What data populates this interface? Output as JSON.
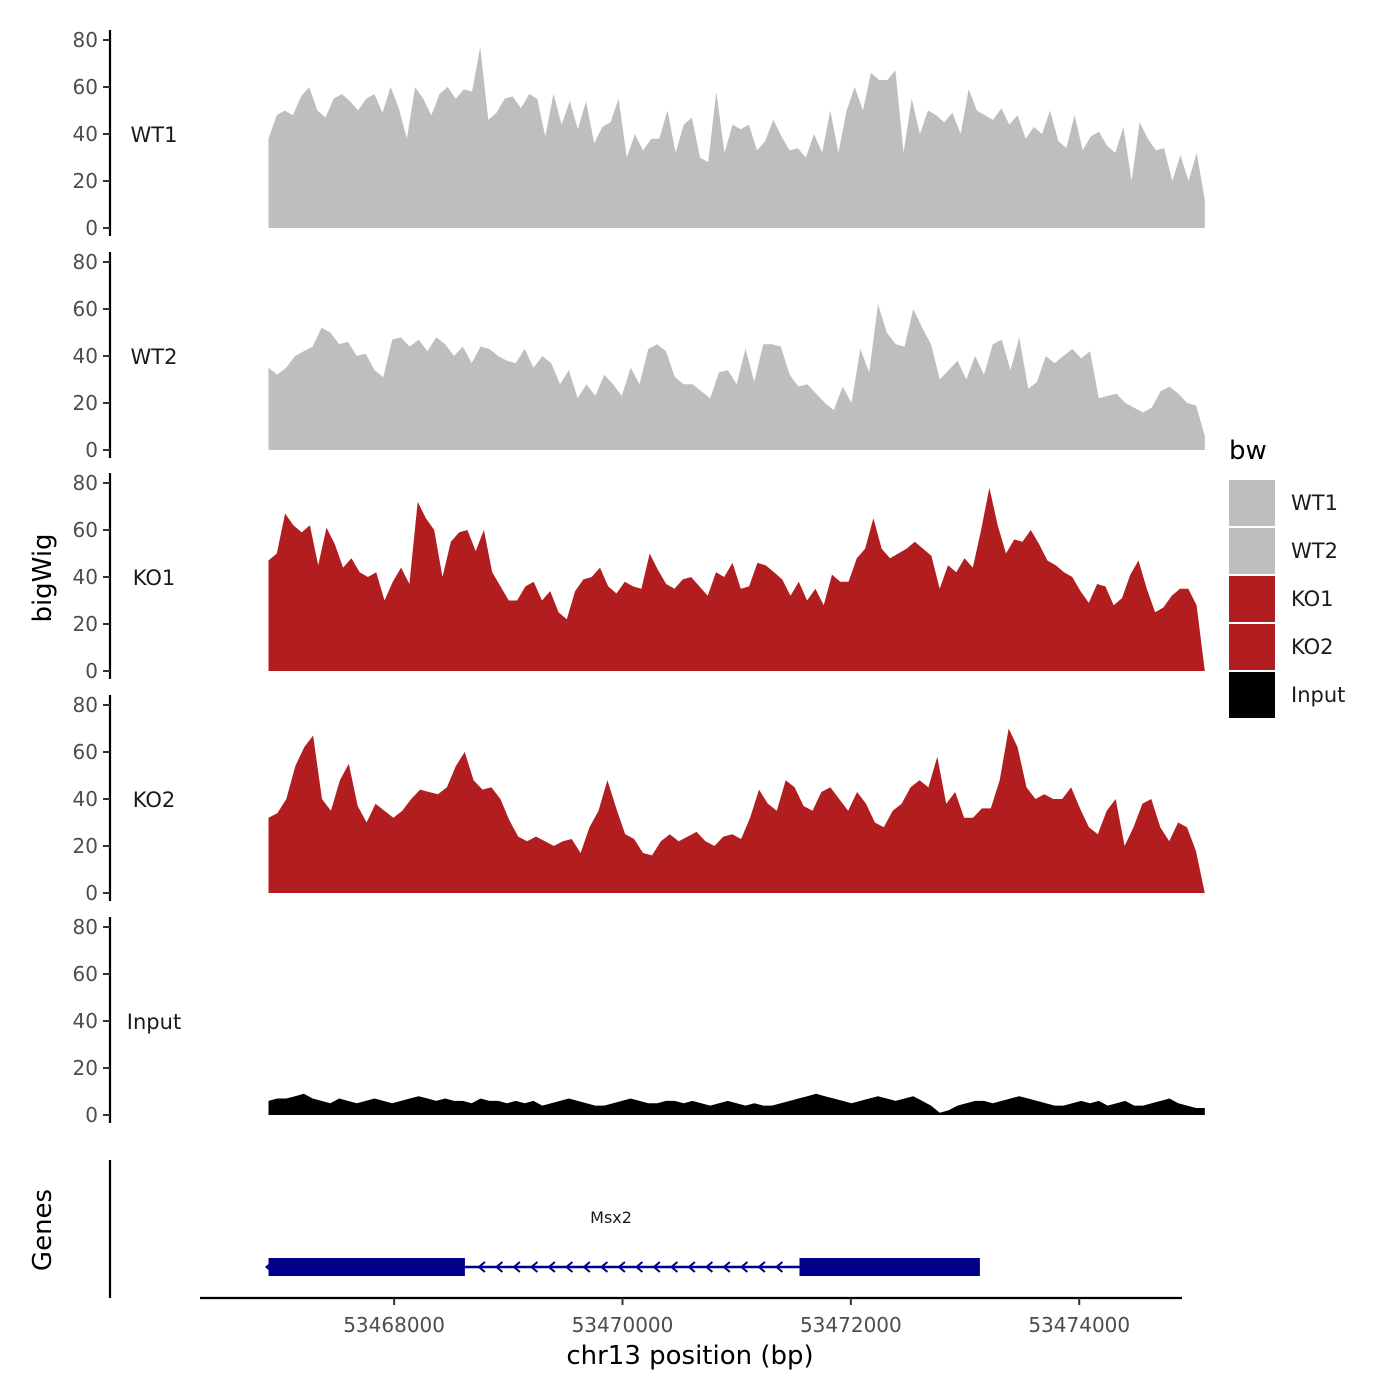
{
  "chart_data": {
    "type": "area",
    "xlabel": "chr13 position (bp)",
    "ylabel": "bigWig",
    "gene_track_label": "Genes",
    "xlim": [
      53466300,
      53474900
    ],
    "x_range_data": [
      53466900,
      53475100
    ],
    "x_ticks": [
      53468000,
      53470000,
      53472000,
      53474000
    ],
    "x_tick_labels": [
      "53468000",
      "53470000",
      "53472000",
      "53474000"
    ],
    "ylim": [
      0,
      82
    ],
    "y_ticks": [
      0,
      20,
      40,
      60,
      80
    ],
    "y_tick_labels": [
      "0",
      "20",
      "40",
      "60",
      "80"
    ],
    "legend": {
      "title": "bw",
      "entries": [
        {
          "label": "WT1",
          "color": "#bebebe"
        },
        {
          "label": "WT2",
          "color": "#bebebe"
        },
        {
          "label": "KO1",
          "color": "#b21d1f"
        },
        {
          "label": "KO2",
          "color": "#b21d1f"
        },
        {
          "label": "Input",
          "color": "#000000"
        }
      ]
    },
    "series": [
      {
        "name": "WT1",
        "label": "WT1",
        "color": "#bebebe",
        "start": 53466900,
        "end": 53475100,
        "values": [
          38,
          48,
          50,
          48,
          56,
          60,
          50,
          47,
          55,
          57,
          54,
          50,
          55,
          57,
          49,
          60,
          51,
          38,
          60,
          55,
          48,
          57,
          60,
          55,
          59,
          58,
          77,
          46,
          49,
          55,
          56,
          51,
          57,
          55,
          39,
          57,
          44,
          54,
          42,
          54,
          36,
          43,
          45,
          55,
          30,
          40,
          33,
          38,
          38,
          50,
          32,
          44,
          47,
          30,
          28,
          58,
          32,
          44,
          42,
          44,
          33,
          37,
          46,
          39,
          33,
          34,
          30,
          40,
          32,
          50,
          32,
          50,
          60,
          50,
          66,
          63,
          63,
          67,
          32,
          55,
          40,
          50,
          48,
          45,
          49,
          40,
          59,
          50,
          48,
          46,
          51,
          44,
          48,
          38,
          43,
          40,
          50,
          37,
          34,
          48,
          33,
          39,
          41,
          35,
          32,
          43,
          20,
          45,
          38,
          33,
          34,
          20,
          31,
          20,
          32,
          12
        ]
      },
      {
        "name": "WT2",
        "label": "WT2",
        "color": "#bebebe",
        "start": 53466900,
        "end": 53475100,
        "values": [
          35,
          32,
          35,
          40,
          42,
          44,
          52,
          50,
          45,
          46,
          40,
          41,
          34,
          31,
          47,
          48,
          44,
          47,
          42,
          48,
          45,
          40,
          44,
          37,
          44,
          43,
          40,
          38,
          37,
          43,
          35,
          40,
          37,
          28,
          34,
          22,
          28,
          23,
          32,
          28,
          23,
          35,
          28,
          43,
          45,
          42,
          31,
          28,
          28,
          25,
          22,
          33,
          34,
          28,
          43,
          29,
          45,
          45,
          44,
          32,
          27,
          28,
          24,
          20,
          17,
          27,
          20,
          43,
          33,
          62,
          50,
          45,
          44,
          60,
          52,
          45,
          30,
          34,
          38,
          30,
          40,
          32,
          45,
          47,
          34,
          48,
          26,
          29,
          40,
          37,
          40,
          43,
          39,
          42,
          22,
          23,
          24,
          20,
          18,
          16,
          18,
          25,
          27,
          24,
          20,
          19,
          6
        ]
      },
      {
        "name": "KO1",
        "label": "KO1",
        "color": "#b21d1f",
        "start": 53466900,
        "end": 53475100,
        "values": [
          47,
          50,
          67,
          62,
          59,
          62,
          45,
          61,
          54,
          44,
          48,
          42,
          40,
          42,
          30,
          38,
          44,
          37,
          72,
          65,
          60,
          40,
          55,
          59,
          60,
          51,
          60,
          42,
          36,
          30,
          30,
          36,
          38,
          30,
          34,
          25,
          22,
          34,
          39,
          40,
          44,
          36,
          33,
          38,
          36,
          35,
          50,
          43,
          37,
          35,
          39,
          40,
          36,
          32,
          42,
          40,
          46,
          35,
          36,
          46,
          45,
          42,
          39,
          32,
          38,
          30,
          35,
          28,
          41,
          38,
          38,
          48,
          52,
          65,
          52,
          48,
          50,
          52,
          55,
          52,
          49,
          35,
          45,
          42,
          48,
          44,
          60,
          78,
          62,
          50,
          56,
          55,
          60,
          54,
          47,
          45,
          42,
          40,
          34,
          29,
          37,
          36,
          28,
          31,
          41,
          47,
          35,
          25,
          27,
          32,
          35,
          35,
          28,
          0
        ]
      },
      {
        "name": "KO2",
        "label": "KO2",
        "color": "#b21d1f",
        "start": 53466900,
        "end": 53475100,
        "values": [
          32,
          34,
          40,
          54,
          62,
          67,
          40,
          35,
          48,
          55,
          37,
          30,
          38,
          35,
          32,
          35,
          40,
          44,
          43,
          42,
          45,
          54,
          60,
          48,
          44,
          45,
          40,
          31,
          24,
          22,
          24,
          22,
          20,
          22,
          23,
          17,
          28,
          35,
          48,
          36,
          25,
          23,
          17,
          16,
          22,
          25,
          22,
          24,
          26,
          22,
          20,
          24,
          25,
          23,
          32,
          44,
          38,
          35,
          48,
          45,
          37,
          35,
          43,
          45,
          40,
          35,
          43,
          38,
          30,
          28,
          35,
          38,
          45,
          48,
          45,
          58,
          38,
          43,
          32,
          32,
          36,
          36,
          48,
          70,
          62,
          45,
          40,
          42,
          40,
          40,
          45,
          36,
          28,
          25,
          35,
          40,
          20,
          28,
          38,
          40,
          28,
          22,
          30,
          28,
          18,
          0
        ]
      },
      {
        "name": "Input",
        "label": "Input",
        "color": "#000000",
        "start": 53466900,
        "end": 53475100,
        "values": [
          6,
          7,
          7,
          8,
          9,
          7,
          6,
          5,
          7,
          6,
          5,
          6,
          7,
          6,
          5,
          6,
          7,
          8,
          7,
          6,
          7,
          6,
          6,
          5,
          7,
          6,
          6,
          5,
          6,
          5,
          6,
          4,
          5,
          6,
          7,
          6,
          5,
          4,
          4,
          5,
          6,
          7,
          6,
          5,
          5,
          6,
          6,
          5,
          6,
          5,
          4,
          5,
          6,
          5,
          4,
          5,
          4,
          4,
          5,
          6,
          7,
          8,
          9,
          8,
          7,
          6,
          5,
          6,
          7,
          8,
          7,
          6,
          7,
          8,
          6,
          4,
          1,
          2,
          4,
          5,
          6,
          6,
          5,
          6,
          7,
          8,
          7,
          6,
          5,
          4,
          4,
          5,
          6,
          5,
          6,
          4,
          5,
          6,
          4,
          4,
          5,
          6,
          7,
          5,
          4,
          3,
          3
        ]
      }
    ],
    "gene": {
      "name": "Msx2",
      "strand": "-",
      "tx_start": 53466900,
      "tx_end": 53473130,
      "exons": [
        [
          53466900,
          53468620
        ],
        [
          53471550,
          53473130
        ]
      ],
      "color": "#00008b"
    }
  }
}
